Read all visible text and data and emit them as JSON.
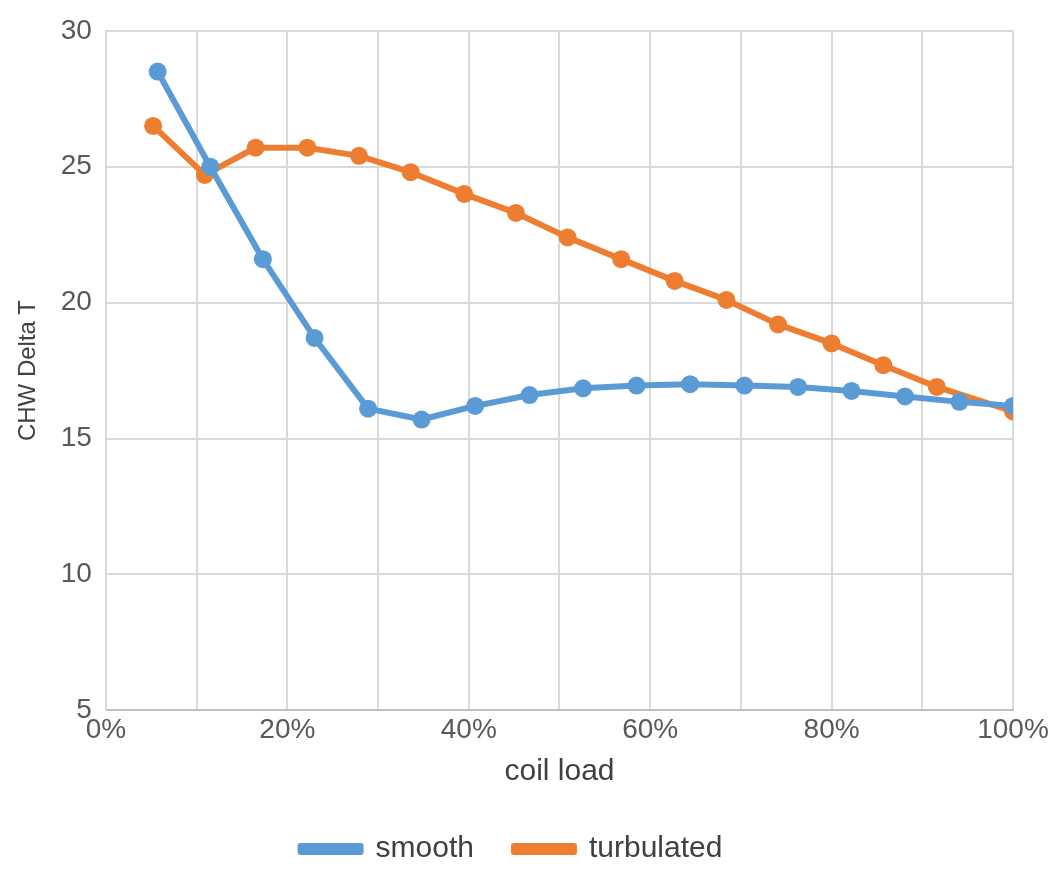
{
  "chart_data": {
    "type": "line",
    "xlabel": "coil load",
    "ylabel": "CHW Delta T",
    "xlim": [
      0,
      100
    ],
    "xticks": [
      {
        "value": 0,
        "label": "0%"
      },
      {
        "value": 10,
        "label": null
      },
      {
        "value": 20,
        "label": "20%"
      },
      {
        "value": 30,
        "label": null
      },
      {
        "value": 40,
        "label": "40%"
      },
      {
        "value": 50,
        "label": null
      },
      {
        "value": 60,
        "label": "60%"
      },
      {
        "value": 70,
        "label": null
      },
      {
        "value": 80,
        "label": "80%"
      },
      {
        "value": 90,
        "label": null
      },
      {
        "value": 100,
        "label": "100%"
      }
    ],
    "ylim": [
      5,
      30
    ],
    "yticks": [
      5,
      10,
      15,
      20,
      25,
      30
    ],
    "grid": true,
    "legend": "bottom",
    "marker": "circle",
    "line_style": "solid",
    "series": [
      {
        "name": "smooth",
        "color": "#5b9bd5",
        "x": [
          5.7,
          11.5,
          17.3,
          23.0,
          28.9,
          34.8,
          40.7,
          46.7,
          52.6,
          58.5,
          64.4,
          70.4,
          76.3,
          82.2,
          88.1,
          94.1,
          100
        ],
        "values": [
          28.5,
          25.0,
          21.6,
          18.7,
          16.1,
          15.7,
          16.2,
          16.6,
          16.85,
          16.95,
          17.0,
          16.95,
          16.9,
          16.75,
          16.55,
          16.35,
          16.2
        ]
      },
      {
        "name": "turbulated",
        "color": "#ed7d31",
        "x": [
          5.2,
          10.9,
          16.5,
          22.2,
          27.9,
          33.6,
          39.5,
          45.2,
          50.9,
          56.8,
          62.7,
          68.4,
          74.1,
          80.0,
          85.7,
          91.6,
          100
        ],
        "values": [
          26.5,
          24.7,
          25.7,
          25.7,
          25.4,
          24.8,
          24.0,
          23.3,
          22.4,
          21.6,
          20.8,
          20.1,
          19.2,
          18.5,
          17.7,
          16.9,
          16.0
        ]
      }
    ]
  }
}
